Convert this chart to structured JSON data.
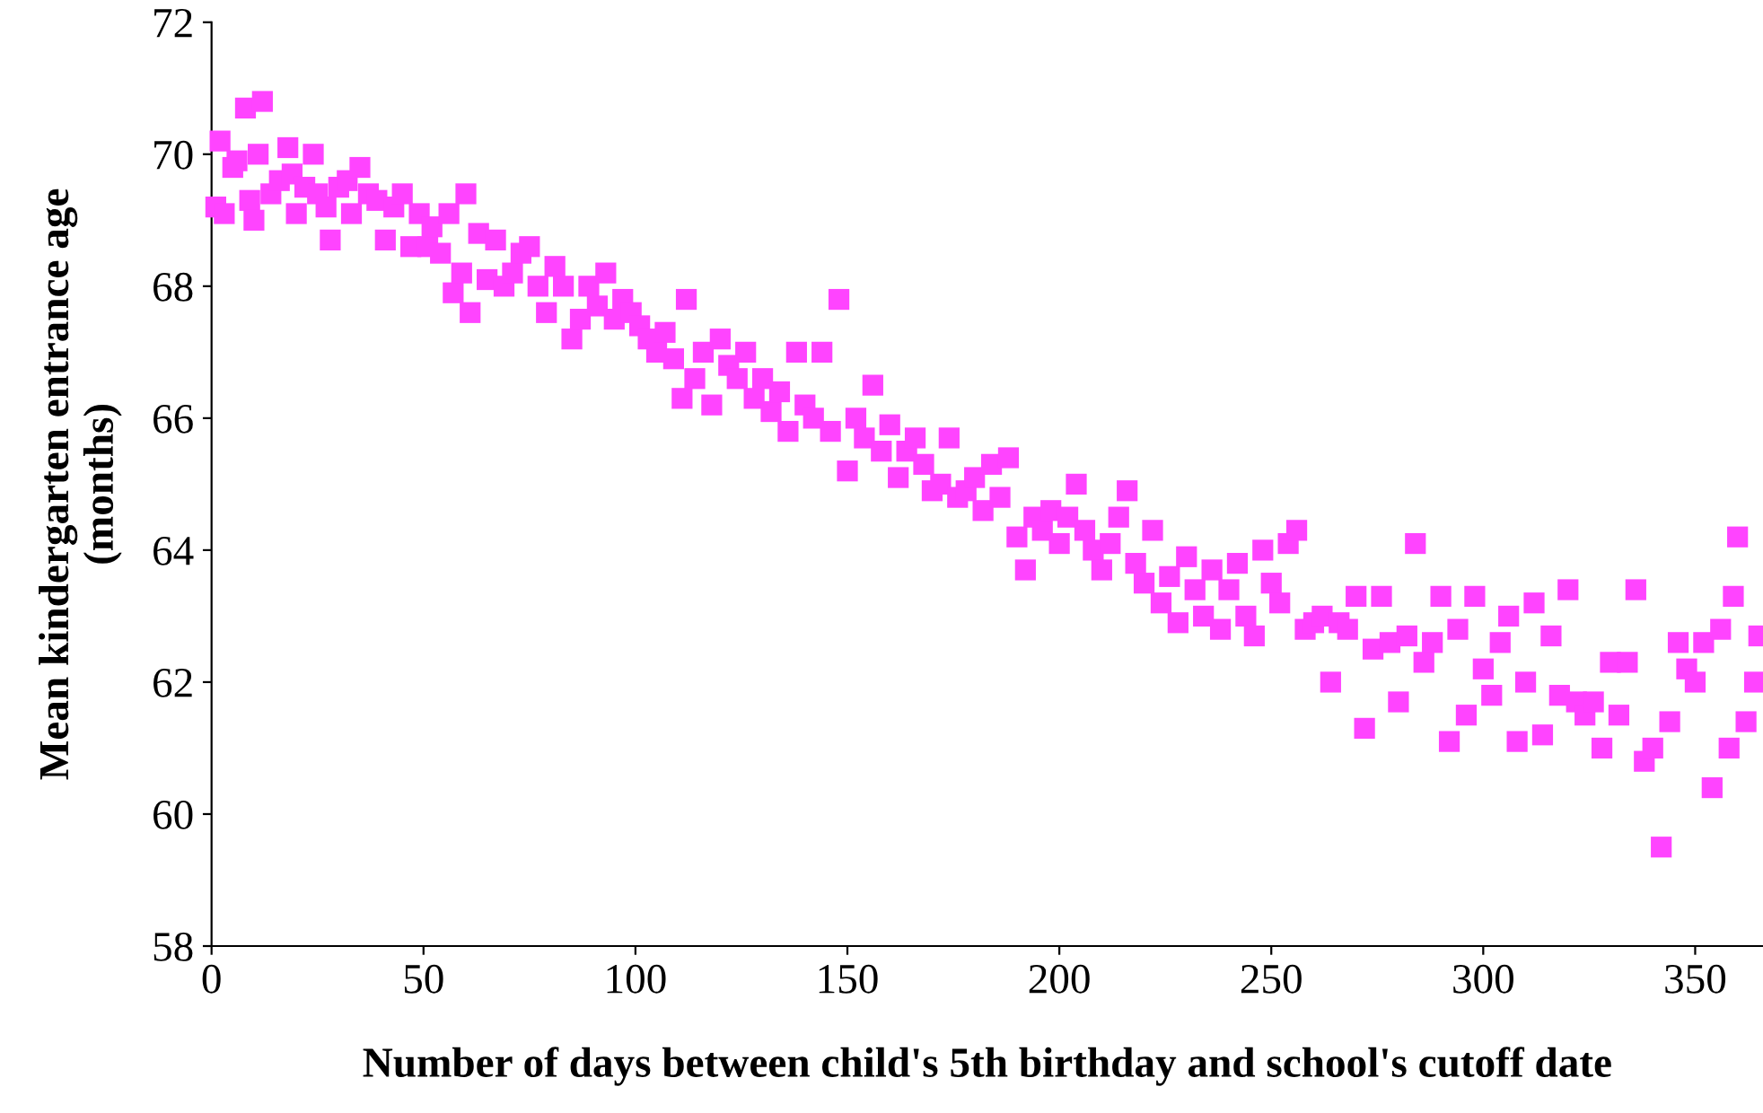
{
  "chart_data": {
    "type": "scatter",
    "xlabel": "Number of days between child's 5th birthday and school's cutoff date",
    "ylabel": "Mean kindergarten entrance age\n(months)",
    "x": [
      1,
      2,
      3,
      5,
      6,
      8,
      9,
      10,
      11,
      12,
      14,
      16,
      18,
      19,
      20,
      22,
      24,
      25,
      27,
      28,
      30,
      32,
      33,
      35,
      37,
      39,
      41,
      43,
      45,
      47,
      49,
      51,
      52,
      54,
      56,
      57,
      59,
      60,
      61,
      63,
      65,
      67,
      69,
      71,
      73,
      75,
      77,
      79,
      81,
      83,
      85,
      87,
      89,
      91,
      93,
      95,
      97,
      99,
      101,
      103,
      105,
      107,
      109,
      111,
      112,
      114,
      116,
      118,
      120,
      122,
      124,
      126,
      128,
      130,
      132,
      134,
      136,
      138,
      140,
      142,
      144,
      146,
      148,
      150,
      152,
      154,
      156,
      158,
      160,
      162,
      164,
      166,
      168,
      170,
      172,
      174,
      176,
      178,
      180,
      182,
      184,
      186,
      188,
      190,
      192,
      194,
      196,
      198,
      200,
      202,
      204,
      206,
      208,
      210,
      212,
      214,
      216,
      218,
      220,
      222,
      224,
      226,
      228,
      230,
      232,
      234,
      236,
      238,
      240,
      242,
      244,
      246,
      248,
      250,
      252,
      254,
      256,
      258,
      260,
      262,
      264,
      266,
      268,
      270,
      272,
      274,
      276,
      278,
      280,
      282,
      284,
      286,
      288,
      290,
      292,
      294,
      296,
      298,
      300,
      302,
      304,
      306,
      308,
      310,
      312,
      314,
      316,
      318,
      320,
      322,
      324,
      326,
      328,
      330,
      332,
      334,
      336,
      338,
      340,
      342,
      344,
      346,
      348,
      350,
      352,
      354,
      356,
      358,
      359,
      360,
      362,
      364,
      365
    ],
    "values": [
      69.2,
      70.2,
      69.1,
      69.8,
      69.9,
      70.7,
      69.3,
      69.0,
      70.0,
      70.8,
      69.4,
      69.6,
      70.1,
      69.7,
      69.1,
      69.5,
      70.0,
      69.4,
      69.2,
      68.7,
      69.5,
      69.6,
      69.1,
      69.8,
      69.4,
      69.3,
      68.7,
      69.2,
      69.4,
      68.6,
      69.1,
      68.6,
      68.9,
      68.5,
      69.1,
      67.9,
      68.2,
      69.4,
      67.6,
      68.8,
      68.1,
      68.7,
      68.0,
      68.2,
      68.5,
      68.6,
      68.0,
      67.6,
      68.3,
      68.0,
      67.2,
      67.5,
      68.0,
      67.7,
      68.2,
      67.5,
      67.8,
      67.6,
      67.4,
      67.2,
      67.0,
      67.3,
      66.9,
      66.3,
      67.8,
      66.6,
      67.0,
      66.2,
      67.2,
      66.8,
      66.6,
      67.0,
      66.3,
      66.6,
      66.1,
      66.4,
      65.8,
      67.0,
      66.2,
      66.0,
      67.0,
      65.8,
      67.8,
      65.2,
      66.0,
      65.7,
      66.5,
      65.5,
      65.9,
      65.1,
      65.5,
      65.7,
      65.3,
      64.9,
      65.0,
      65.7,
      64.8,
      64.9,
      65.1,
      64.6,
      65.3,
      64.8,
      65.4,
      64.2,
      63.7,
      64.5,
      64.3,
      64.6,
      64.1,
      64.5,
      65.0,
      64.3,
      64.0,
      63.7,
      64.1,
      64.5,
      64.9,
      63.8,
      63.5,
      64.3,
      63.2,
      63.6,
      62.9,
      63.9,
      63.4,
      63.0,
      63.7,
      62.8,
      63.4,
      63.8,
      63.0,
      62.7,
      64.0,
      63.5,
      63.2,
      64.1,
      64.3,
      62.8,
      62.9,
      63.0,
      62.0,
      62.9,
      62.8,
      63.3,
      61.3,
      62.5,
      63.3,
      62.6,
      61.7,
      62.7,
      64.1,
      62.3,
      62.6,
      63.3,
      61.1,
      62.8,
      61.5,
      63.3,
      62.2,
      61.8,
      62.6,
      63.0,
      61.1,
      62.0,
      63.2,
      61.2,
      62.7,
      61.8,
      63.4,
      61.7,
      61.5,
      61.7,
      61.0,
      62.3,
      61.5,
      62.3,
      63.4,
      60.8,
      61.0,
      59.5,
      61.4,
      62.6,
      62.2,
      62.0,
      62.6,
      60.4,
      62.8,
      61.0,
      63.3,
      64.2,
      61.4,
      62.0,
      62.7
    ],
    "color": "#ff44ff",
    "marker": "square",
    "xlim": [
      0,
      366
    ],
    "xticks": [
      0,
      50,
      100,
      150,
      200,
      250,
      300,
      350
    ],
    "ylim": [
      58,
      72
    ],
    "yticks": [
      58,
      60,
      62,
      64,
      66,
      68,
      70,
      72
    ],
    "grid": false
  }
}
